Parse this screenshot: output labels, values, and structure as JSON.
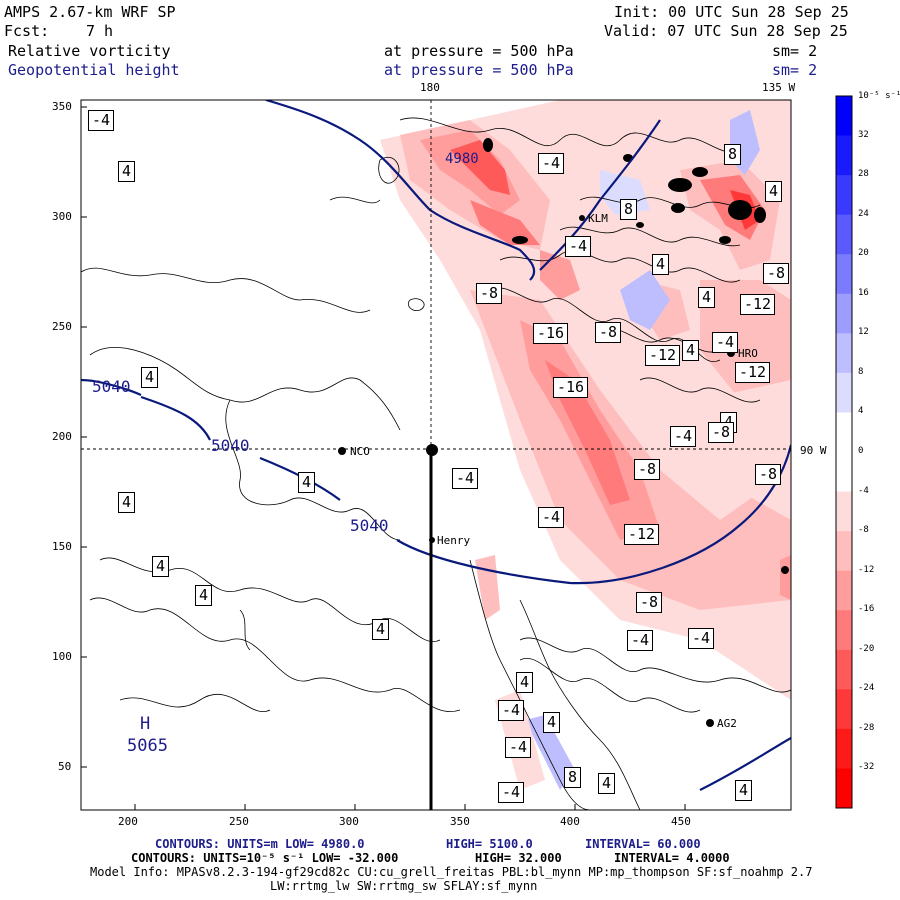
{
  "header": {
    "model": "AMPS 2.67-km WRF SP",
    "init": "Init: 00 UTC Sun 28 Sep 25",
    "fcst_label": "Fcst:",
    "fcst_value": "7 h",
    "valid": "Valid: 07 UTC Sun 28 Sep 25",
    "field1": "Relative vorticity",
    "field2": "Geopotential height",
    "pressure1": "at pressure =  500 hPa",
    "pressure2": "at pressure =  500 hPa",
    "sm1": "sm= 2",
    "sm2": "sm= 2"
  },
  "map_labels": {
    "lon_top_180": "180",
    "lon_top_135w": "135 W",
    "lon_right_90w": "90 W",
    "x_ticks": [
      "200",
      "250",
      "300",
      "350",
      "400",
      "450"
    ],
    "y_ticks": [
      "350",
      "300",
      "250",
      "200",
      "150",
      "100",
      "50"
    ],
    "stations": [
      "NCO",
      "Henry",
      "KLM",
      "HRO",
      "AG2"
    ],
    "height_contours": [
      "5040",
      "5040",
      "5040",
      "4980"
    ],
    "high_label": "H",
    "high_value": "5065",
    "vort_labels_pos": [
      "4",
      "4",
      "4",
      "4",
      "4",
      "4",
      "4",
      "4",
      "4",
      "4",
      "4",
      "4",
      "4",
      "4",
      "4",
      "4",
      "8",
      "8",
      "8"
    ],
    "vort_labels_neg": [
      "-4",
      "-4",
      "-4",
      "-4",
      "-4",
      "-4",
      "-4",
      "-4",
      "-4",
      "-4",
      "-4",
      "-4",
      "-8",
      "-8",
      "-8",
      "-8",
      "-8",
      "-8",
      "-8",
      "-12",
      "-12",
      "-12",
      "-12",
      "-16",
      "-16"
    ]
  },
  "colorbar": {
    "unit": "10⁻⁵ s⁻¹",
    "labels": [
      "32",
      "28",
      "24",
      "20",
      "16",
      "12",
      "8",
      "4",
      "0",
      "-4",
      "-8",
      "-12",
      "-16",
      "-20",
      "-24",
      "-28",
      "-32"
    ],
    "colors": [
      "#0000ff",
      "#1a1aff",
      "#3939ff",
      "#5a5aff",
      "#7b7bff",
      "#9d9dff",
      "#bebeff",
      "#dcdcff",
      "#ffffff",
      "#ffffff",
      "#ffdcdc",
      "#ffbebe",
      "#ff9d9d",
      "#ff7b7b",
      "#ff5a5a",
      "#ff3939",
      "#ff1a1a",
      "#ff0000"
    ]
  },
  "footer": {
    "line1_a": "CONTOURS:  UNITS=m  LOW=  4980.0",
    "line1_b": "HIGH=  5100.0",
    "line1_c": "INTERVAL=   60.000",
    "line2_a": "CONTOURS:  UNITS=10⁻⁵ s⁻¹  LOW= -32.000",
    "line2_b": "HIGH=  32.000",
    "line2_c": "INTERVAL=   4.0000",
    "line3": "Model Info: MPASv8.2.3-194-gf29cd82c CU:cu_grell_freitas PBL:bl_mynn MP:mp_thompson SF:sf_noahmp 2.7",
    "line4": "LW:rrtmg_lw SW:rrtmg_sw SFLAY:sf_mynn"
  }
}
